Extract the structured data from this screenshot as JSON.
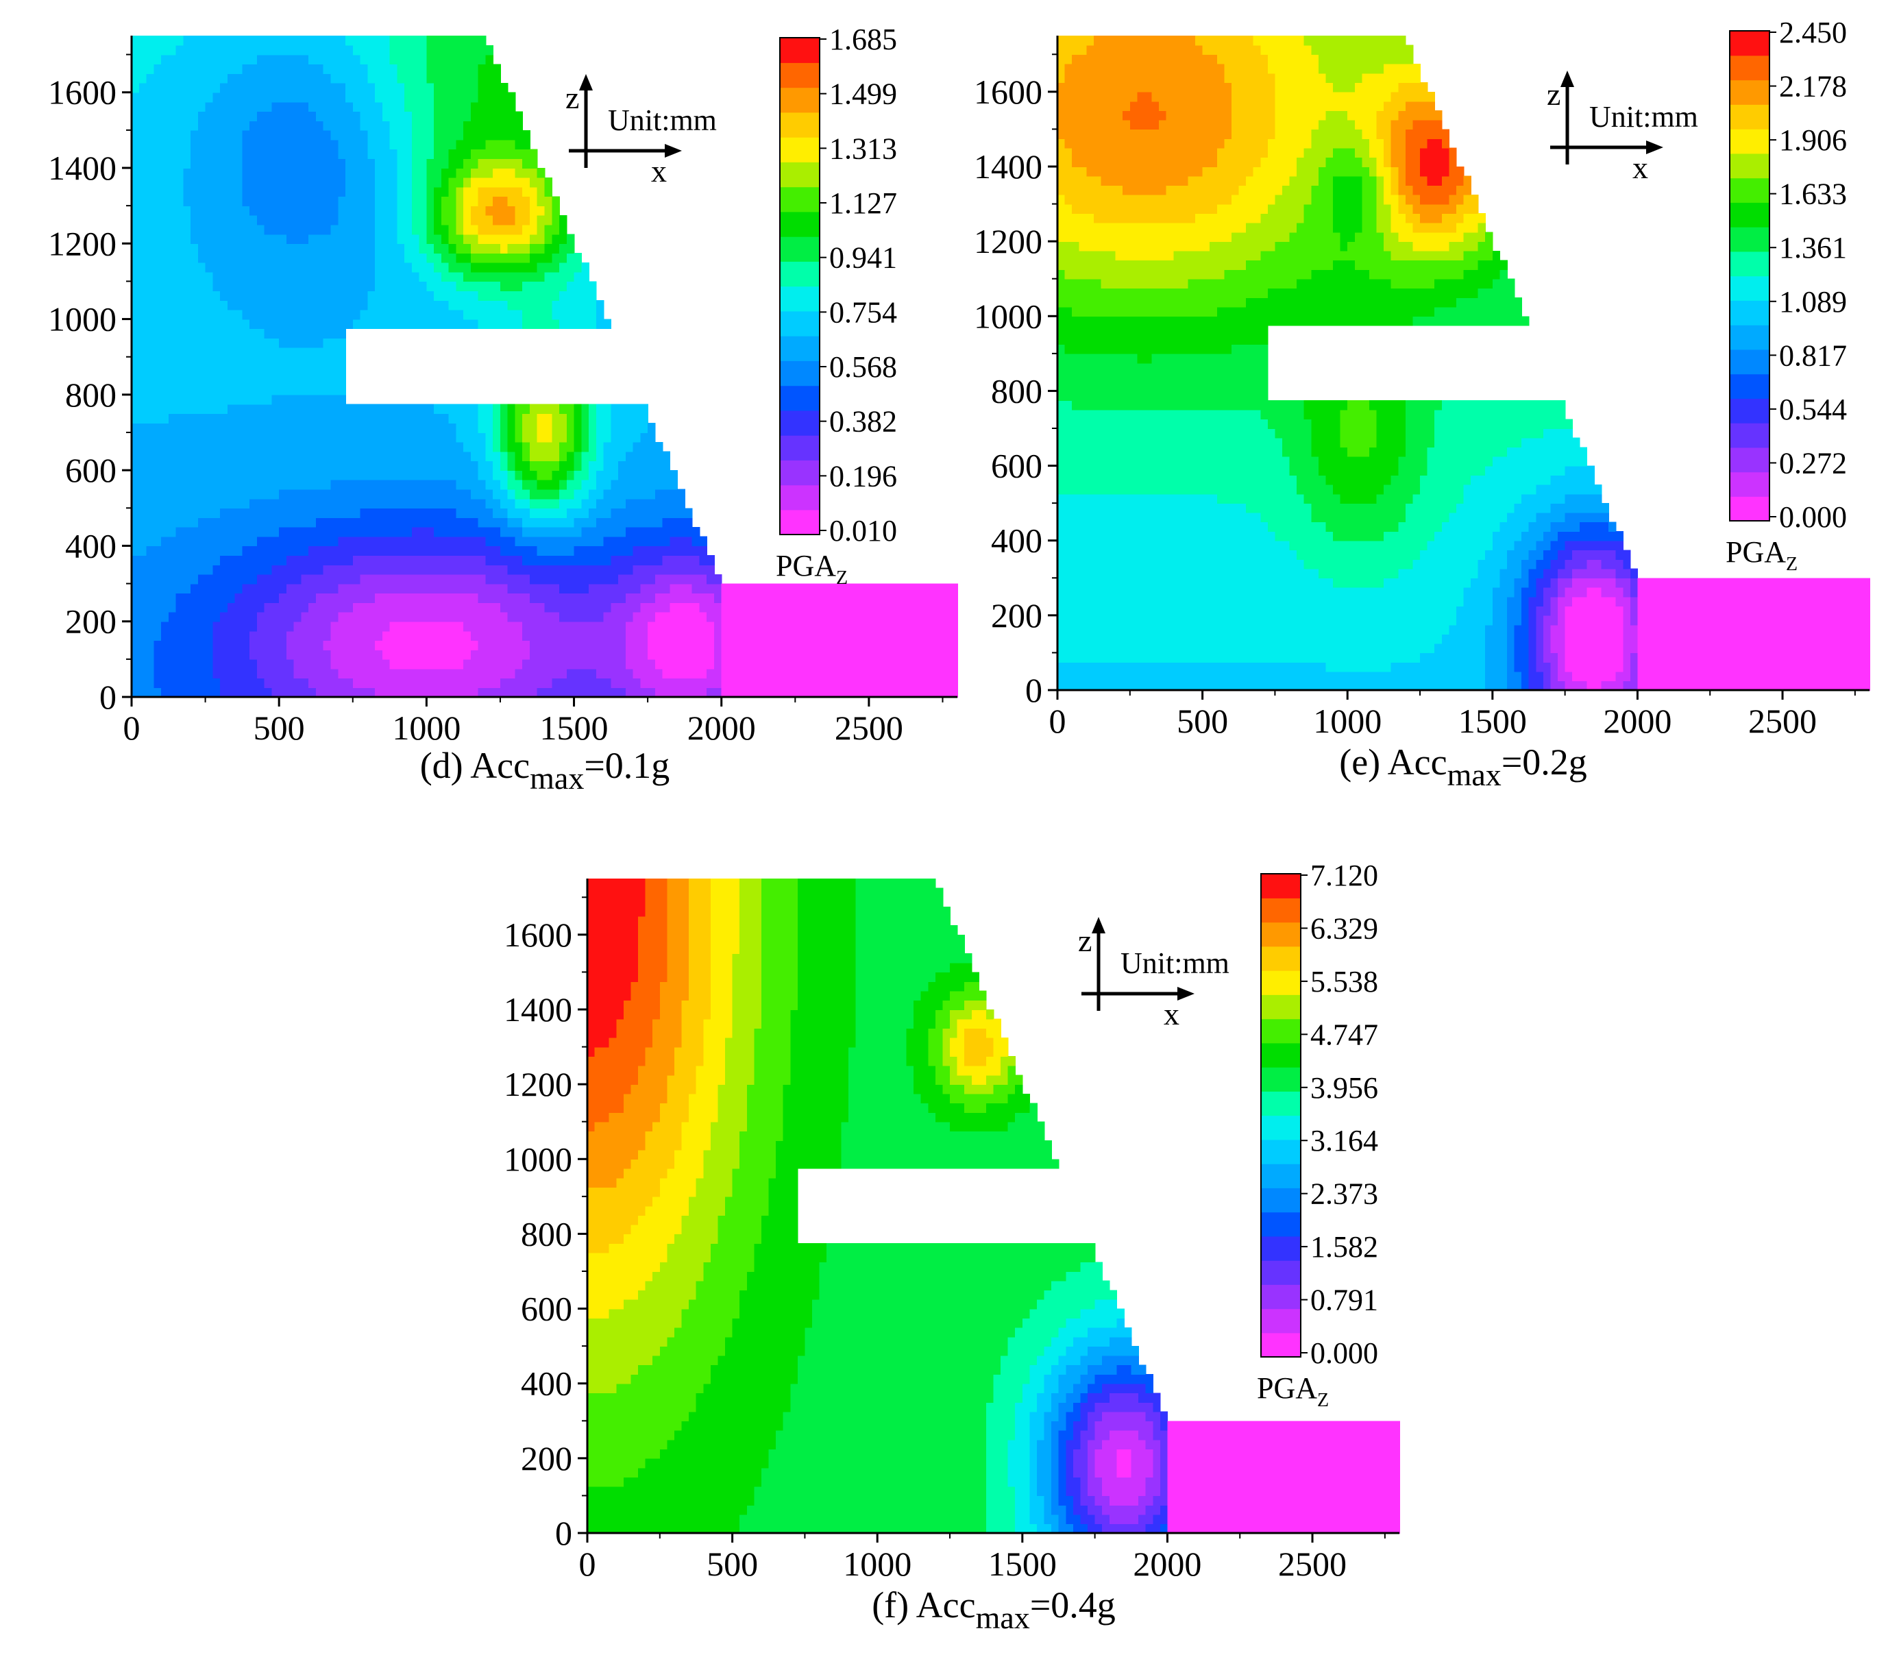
{
  "chart_data": [
    {
      "type": "heatmap",
      "panel": "d",
      "caption": {
        "prefix": "(d) Acc",
        "sub": "max",
        "suffix": "=0.1g"
      },
      "xticks": [
        0,
        500,
        1000,
        1500,
        2000,
        2500
      ],
      "yticks": [
        0,
        200,
        400,
        600,
        800,
        1000,
        1200,
        1400,
        1600
      ],
      "xlim": [
        0,
        2800
      ],
      "ylim": [
        0,
        1750
      ],
      "colorbar": {
        "labels": [
          "1.685",
          "1.499",
          "1.313",
          "1.127",
          "0.941",
          "0.754",
          "0.568",
          "0.382",
          "0.196",
          "0.010"
        ],
        "min": 0.01,
        "max": 1.685,
        "title": "PGA",
        "title_sub": "Z"
      },
      "axis_indicator": {
        "z": "z",
        "x": "x",
        "unit": "Unit:mm"
      },
      "field": {
        "base": 0.7,
        "bumps": [
          {
            "x": 1250,
            "z": 1270,
            "rx": 230,
            "rz": 160,
            "v": 0.62
          },
          {
            "x": 1400,
            "z": 700,
            "rx": 160,
            "rz": 230,
            "v": 0.62
          },
          {
            "x": 1200,
            "z": 1600,
            "rx": 450,
            "rz": 350,
            "v": 0.25
          },
          {
            "x": 600,
            "z": 1450,
            "rx": 400,
            "rz": 350,
            "v": -0.25
          },
          {
            "x": 1000,
            "z": 150,
            "rx": 700,
            "rz": 300,
            "v": -0.55
          },
          {
            "x": 1900,
            "z": 150,
            "rx": 250,
            "rz": 250,
            "v": -0.5
          }
        ],
        "z_gradient": 0.00012
      }
    },
    {
      "type": "heatmap",
      "panel": "e",
      "caption": {
        "prefix": "(e) Acc",
        "sub": "max",
        "suffix": "=0.2g"
      },
      "xticks": [
        0,
        500,
        1000,
        1500,
        2000,
        2500
      ],
      "yticks": [
        0,
        200,
        400,
        600,
        800,
        1000,
        1200,
        1400,
        1600
      ],
      "xlim": [
        0,
        2800
      ],
      "ylim": [
        0,
        1750
      ],
      "colorbar": {
        "labels": [
          "2.450",
          "2.178",
          "1.906",
          "1.633",
          "1.361",
          "1.089",
          "0.817",
          "0.544",
          "0.272",
          "0.000"
        ],
        "min": 0.0,
        "max": 2.45,
        "title": "PGA",
        "title_sub": "Z"
      },
      "axis_indicator": {
        "z": "z",
        "x": "x",
        "unit": "Unit:mm"
      },
      "field": {
        "base": 1.3,
        "bumps": [
          {
            "x": 300,
            "z": 1500,
            "rx": 700,
            "rz": 500,
            "v": 0.75
          },
          {
            "x": 1300,
            "z": 1400,
            "rx": 250,
            "rz": 250,
            "v": 0.85
          },
          {
            "x": 1040,
            "z": 1350,
            "rx": 140,
            "rz": 140,
            "v": -0.35
          },
          {
            "x": 1040,
            "z": 650,
            "rx": 220,
            "rz": 300,
            "v": 0.35
          },
          {
            "x": 1850,
            "z": 150,
            "rx": 250,
            "rz": 300,
            "v": -1.2
          }
        ],
        "z_gradient": 0.00025
      }
    },
    {
      "type": "heatmap",
      "panel": "f",
      "caption": {
        "prefix": "(f) Acc",
        "sub": "max",
        "suffix": "=0.4g"
      },
      "xticks": [
        0,
        500,
        1000,
        1500,
        2000,
        2500
      ],
      "yticks": [
        0,
        200,
        400,
        600,
        800,
        1000,
        1200,
        1400,
        1600
      ],
      "xlim": [
        0,
        2800
      ],
      "ylim": [
        0,
        1750
      ],
      "colorbar": {
        "labels": [
          "7.120",
          "6.329",
          "5.538",
          "4.747",
          "3.956",
          "3.164",
          "2.373",
          "1.582",
          "0.791",
          "0.000"
        ],
        "min": 0.0,
        "max": 7.12,
        "title": "PGA",
        "title_sub": "Z"
      },
      "axis_indicator": {
        "z": "z",
        "x": "x",
        "unit": "Unit:mm"
      },
      "field": {
        "base": 4.1,
        "bumps": [
          {
            "x": 0,
            "z": 1700,
            "rx": 550,
            "rz": 1200,
            "v": 3.0
          },
          {
            "x": 1350,
            "z": 1300,
            "rx": 150,
            "rz": 150,
            "v": 1.8
          },
          {
            "x": 1850,
            "z": 180,
            "rx": 280,
            "rz": 320,
            "v": -3.8
          }
        ],
        "z_gradient": 0.0
      }
    }
  ]
}
